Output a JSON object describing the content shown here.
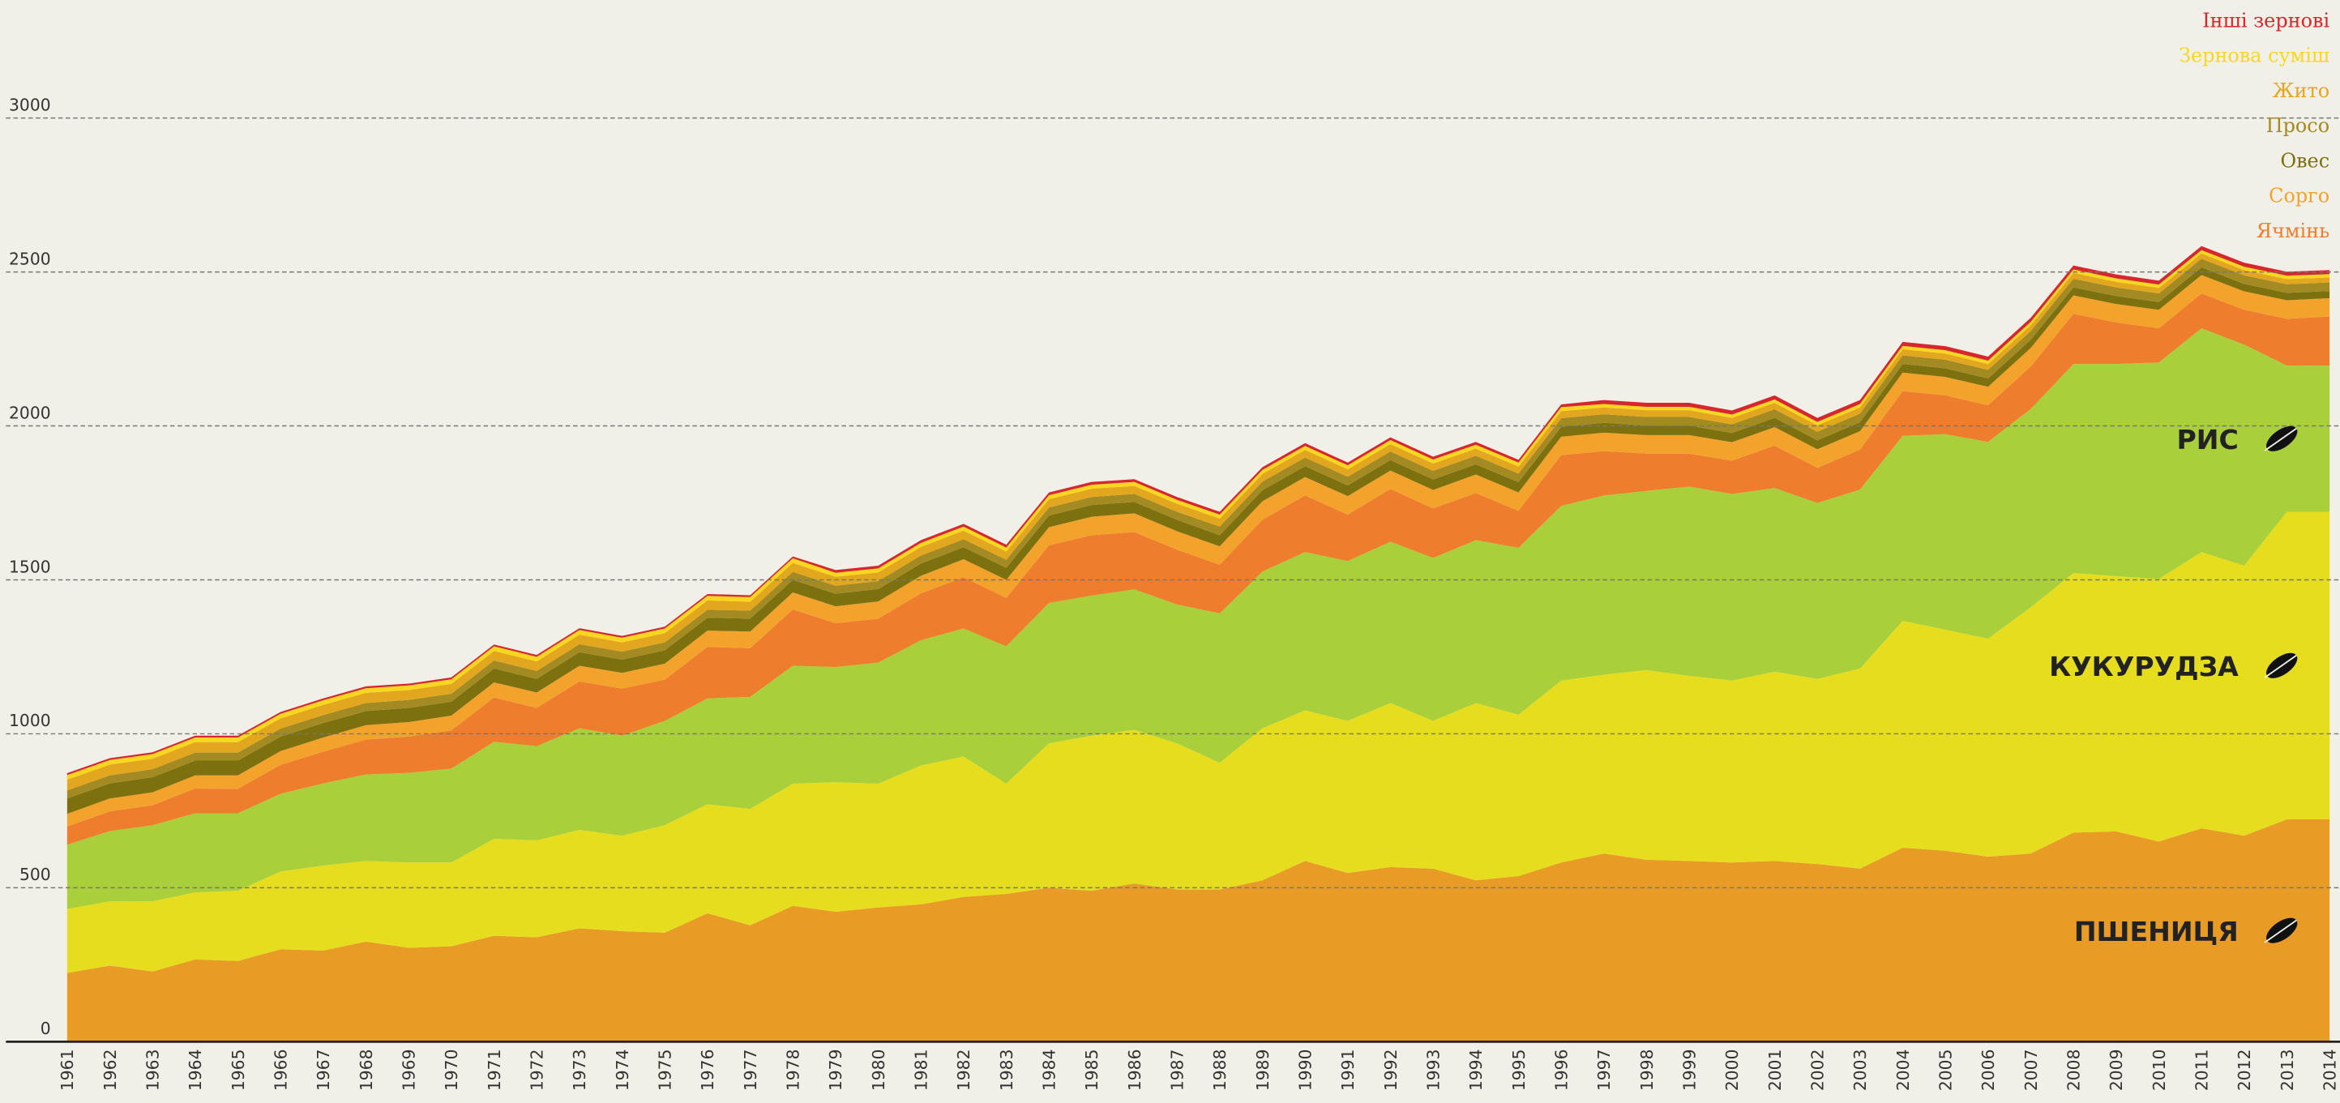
{
  "chart_data": {
    "type": "stacked_area",
    "x": [
      1961,
      1962,
      1963,
      1964,
      1965,
      1966,
      1967,
      1968,
      1969,
      1970,
      1971,
      1972,
      1973,
      1974,
      1975,
      1976,
      1977,
      1978,
      1979,
      1980,
      1981,
      1982,
      1983,
      1984,
      1985,
      1986,
      1987,
      1988,
      1989,
      1990,
      1991,
      1992,
      1993,
      1994,
      1995,
      1996,
      1997,
      1998,
      1999,
      2000,
      2001,
      2002,
      2003,
      2004,
      2005,
      2006,
      2007,
      2008,
      2009,
      2010,
      2011,
      2012,
      2013,
      2014
    ],
    "xlim": [
      1961,
      2014
    ],
    "ylim": [
      0,
      3000
    ],
    "yticks": [
      0,
      500,
      1000,
      1500,
      2000,
      2500,
      3000
    ],
    "grid": true,
    "series": [
      {
        "name": "ПШЕНИЦЯ",
        "color": "#e89c26",
        "values": [
          223,
          247,
          228,
          267,
          262,
          300,
          296,
          325,
          305,
          310,
          344,
          339,
          368,
          359,
          354,
          417,
          378,
          441,
          422,
          436,
          446,
          470,
          480,
          500,
          490,
          514,
          494,
          494,
          524,
          587,
          548,
          567,
          562,
          524,
          538,
          582,
          611,
          591,
          587,
          582,
          587,
          577,
          562,
          630,
          620,
          601,
          611,
          679,
          683,
          650,
          693,
          669,
          722,
          722
        ]
      },
      {
        "name": "КУКУРУДЗА",
        "color": "#e6dd1e",
        "values": [
          208,
          209,
          228,
          218,
          228,
          253,
          276,
          262,
          277,
          272,
          315,
          315,
          320,
          310,
          349,
          354,
          378,
          397,
          421,
          402,
          451,
          456,
          358,
          469,
          504,
          499,
          475,
          412,
          494,
          489,
          494,
          533,
          480,
          576,
          524,
          591,
          581,
          616,
          601,
          591,
          615,
          601,
          650,
          737,
          718,
          708,
          800,
          843,
          829,
          853,
          897,
          877,
          999,
          999
        ]
      },
      {
        "name": "РИС",
        "color": "#a9d03a",
        "values": [
          209,
          228,
          247,
          257,
          252,
          252,
          267,
          281,
          291,
          305,
          315,
          306,
          330,
          325,
          339,
          344,
          364,
          383,
          374,
          393,
          407,
          416,
          446,
          456,
          455,
          456,
          451,
          485,
          509,
          514,
          519,
          524,
          529,
          529,
          542,
          567,
          582,
          582,
          615,
          606,
          596,
          572,
          581,
          601,
          635,
          639,
          644,
          679,
          689,
          703,
          727,
          718,
          475,
          475
        ]
      },
      {
        "name": "Ячмінь",
        "color": "#ef7d2e",
        "values": [
          59,
          64,
          65,
          80,
          79,
          94,
          103,
          113,
          118,
          124,
          144,
          124,
          152,
          153,
          134,
          167,
          158,
          183,
          142,
          143,
          152,
          167,
          157,
          187,
          196,
          186,
          178,
          158,
          168,
          184,
          151,
          171,
          161,
          153,
          120,
          165,
          144,
          121,
          107,
          108,
          138,
          114,
          130,
          145,
          126,
          119,
          138,
          163,
          135,
          111,
          113,
          113,
          152,
          159
        ]
      },
      {
        "name": "Сорго",
        "color": "#f3a22b",
        "values": [
          41,
          42,
          42,
          43,
          44,
          45,
          46,
          47,
          47,
          48,
          49,
          50,
          51,
          51,
          52,
          53,
          54,
          55,
          55,
          56,
          57,
          58,
          59,
          59,
          60,
          61,
          60,
          60,
          60,
          60,
          60,
          60,
          60,
          60,
          60,
          60,
          60,
          60,
          60,
          60,
          60,
          60,
          60,
          60,
          60,
          60,
          60,
          60,
          60,
          60,
          60,
          60,
          60,
          60
        ]
      },
      {
        "name": "Овес",
        "color": "#7d700f",
        "values": [
          50,
          49,
          49,
          48,
          48,
          47,
          47,
          46,
          46,
          45,
          45,
          44,
          44,
          43,
          43,
          42,
          42,
          41,
          41,
          40,
          40,
          39,
          39,
          38,
          38,
          37,
          37,
          36,
          36,
          35,
          35,
          34,
          34,
          33,
          33,
          32,
          32,
          31,
          31,
          30,
          30,
          29,
          29,
          28,
          28,
          27,
          27,
          26,
          26,
          25,
          25,
          24,
          24,
          23
        ]
      },
      {
        "name": "Просо",
        "color": "#a38a22",
        "values": [
          26,
          26,
          26,
          26,
          26,
          26,
          26,
          26,
          26,
          26,
          26,
          26,
          26,
          26,
          26,
          26,
          26,
          26,
          26,
          26,
          26,
          26,
          26,
          26,
          26,
          26,
          26,
          28,
          28,
          28,
          28,
          28,
          28,
          28,
          28,
          28,
          28,
          28,
          28,
          28,
          28,
          28,
          28,
          28,
          28,
          28,
          28,
          28,
          28,
          28,
          28,
          28,
          28,
          28
        ]
      },
      {
        "name": "Жито",
        "color": "#e3a71f",
        "values": [
          35,
          35,
          34,
          34,
          34,
          33,
          33,
          33,
          32,
          32,
          31,
          31,
          31,
          30,
          30,
          30,
          29,
          29,
          29,
          28,
          28,
          28,
          27,
          27,
          27,
          26,
          26,
          26,
          25,
          25,
          24,
          24,
          24,
          23,
          23,
          23,
          22,
          22,
          22,
          21,
          21,
          21,
          20,
          20,
          20,
          19,
          19,
          19,
          18,
          18,
          17,
          17,
          17,
          16
        ]
      },
      {
        "name": "Зернова суміш",
        "color": "#f8d71e",
        "values": [
          15,
          15,
          15,
          15,
          15,
          15,
          15,
          15,
          15,
          15,
          15,
          15,
          15,
          15,
          15,
          15,
          15,
          15,
          13,
          13,
          13,
          13,
          13,
          13,
          13,
          13,
          13,
          13,
          13,
          13,
          13,
          13,
          13,
          13,
          13,
          13,
          11,
          11,
          11,
          11,
          11,
          11,
          11,
          11,
          11,
          11,
          11,
          11,
          11,
          11,
          11,
          11,
          11,
          11
        ]
      },
      {
        "name": "Інші зернові",
        "color": "#d7262e",
        "values": [
          6,
          6,
          6,
          6,
          6,
          6,
          6,
          6,
          6,
          6,
          6,
          6,
          6,
          6,
          6,
          6,
          6,
          6,
          9,
          9,
          9,
          9,
          9,
          9,
          9,
          9,
          9,
          9,
          9,
          9,
          9,
          9,
          9,
          9,
          9,
          9,
          13,
          13,
          13,
          13,
          13,
          13,
          13,
          13,
          13,
          13,
          13,
          13,
          13,
          13,
          13,
          13,
          13,
          13
        ]
      }
    ]
  }
}
